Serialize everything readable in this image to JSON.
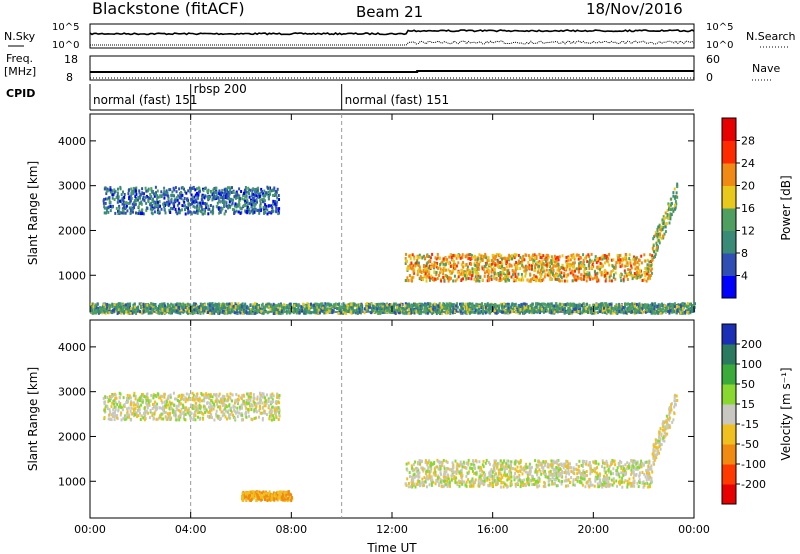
{
  "header": {
    "station": "Blackstone (fitACF)",
    "beam": "Beam 21",
    "date": "18/Nov/2016"
  },
  "noise_panel": {
    "left_label": "N.Sky",
    "right_label": "N.Search",
    "left_ticks": [
      "10^5",
      "10^0"
    ],
    "right_ticks": [
      "10^5",
      "10^0"
    ]
  },
  "freq_panel": {
    "left_label_1": "Freq.",
    "left_label_2": "[MHz]",
    "right_label": "Nave",
    "left_ticks": [
      "18",
      "8"
    ],
    "right_ticks": [
      "60",
      "0"
    ]
  },
  "cpid": {
    "label": "CPID",
    "segments": [
      {
        "start_hr": 0.0,
        "name": "normal (fast) 151"
      },
      {
        "start_hr": 4.0,
        "name": "rbsp 200"
      },
      {
        "start_hr": 10.0,
        "name": "normal (fast) 151"
      }
    ]
  },
  "chart_data": [
    {
      "type": "heatmap",
      "title": "",
      "xlabel": "Time UT",
      "ylabel": "Slant Range [km]",
      "x_ticks": [
        "00:00",
        "04:00",
        "08:00",
        "12:00",
        "16:00",
        "20:00",
        "00:00"
      ],
      "xlim_hours": [
        0,
        24
      ],
      "ylim": [
        180,
        4600
      ],
      "y_ticks": [
        1000,
        2000,
        3000,
        4000
      ],
      "colorbar": {
        "label": "Power [dB]",
        "ticks": [
          "4",
          "8",
          "12",
          "16",
          "20",
          "24",
          "28"
        ],
        "colors": [
          "#0000ff",
          "#2f4fb5",
          "#3a8a78",
          "#4fa060",
          "#e8c81a",
          "#f08a15",
          "#ff2a00",
          "#e80000"
        ]
      },
      "echo_regions": [
        {
          "description": "F-region scatter",
          "t_start": 0.5,
          "t_end": 7.5,
          "range_km": [
            2400,
            3000
          ],
          "level": 8
        },
        {
          "description": "Ionospheric scatter band",
          "t_start": 12.5,
          "t_end": 22.3,
          "range_km": [
            900,
            1500
          ],
          "level": 20
        },
        {
          "description": "Rising tail",
          "t_start": 22.3,
          "t_end": 23.3,
          "range_km": [
            1500,
            3000
          ],
          "level": 16
        },
        {
          "description": "Ground/near-range clutter",
          "t_start": 0.0,
          "t_end": 24.0,
          "range_km": [
            180,
            400
          ],
          "level": 12
        }
      ]
    },
    {
      "type": "heatmap",
      "title": "",
      "xlabel": "Time UT",
      "ylabel": "Slant Range [km]",
      "x_ticks": [
        "00:00",
        "04:00",
        "08:00",
        "12:00",
        "16:00",
        "20:00",
        "00:00"
      ],
      "xlim_hours": [
        0,
        24
      ],
      "ylim": [
        180,
        4600
      ],
      "y_ticks": [
        1000,
        2000,
        3000,
        4000
      ],
      "colorbar": {
        "label": "Velocity [m s⁻¹]",
        "ticks": [
          "200",
          "100",
          "50",
          "15",
          "-15",
          "-50",
          "-100",
          "-200"
        ],
        "colors": [
          "#1a2fb5",
          "#2a7a60",
          "#3aaa3a",
          "#88d830",
          "#c8c8c0",
          "#f0c020",
          "#f08a10",
          "#ff3a00",
          "#e80000"
        ]
      },
      "echo_regions": [
        {
          "description": "F-region scatter (low velocity)",
          "t_start": 0.5,
          "t_end": 7.5,
          "range_km": [
            2400,
            3000
          ],
          "velocity": 0
        },
        {
          "description": "Ground scatter band",
          "t_start": 12.5,
          "t_end": 22.3,
          "range_km": [
            900,
            1500
          ],
          "velocity": 0
        },
        {
          "description": "Rising tail",
          "t_start": 22.3,
          "t_end": 23.3,
          "range_km": [
            1500,
            3000
          ],
          "velocity": -10
        },
        {
          "description": "Near-range echoes",
          "t_start": 6.0,
          "t_end": 8.0,
          "range_km": [
            600,
            800
          ],
          "velocity": -50
        }
      ]
    }
  ]
}
